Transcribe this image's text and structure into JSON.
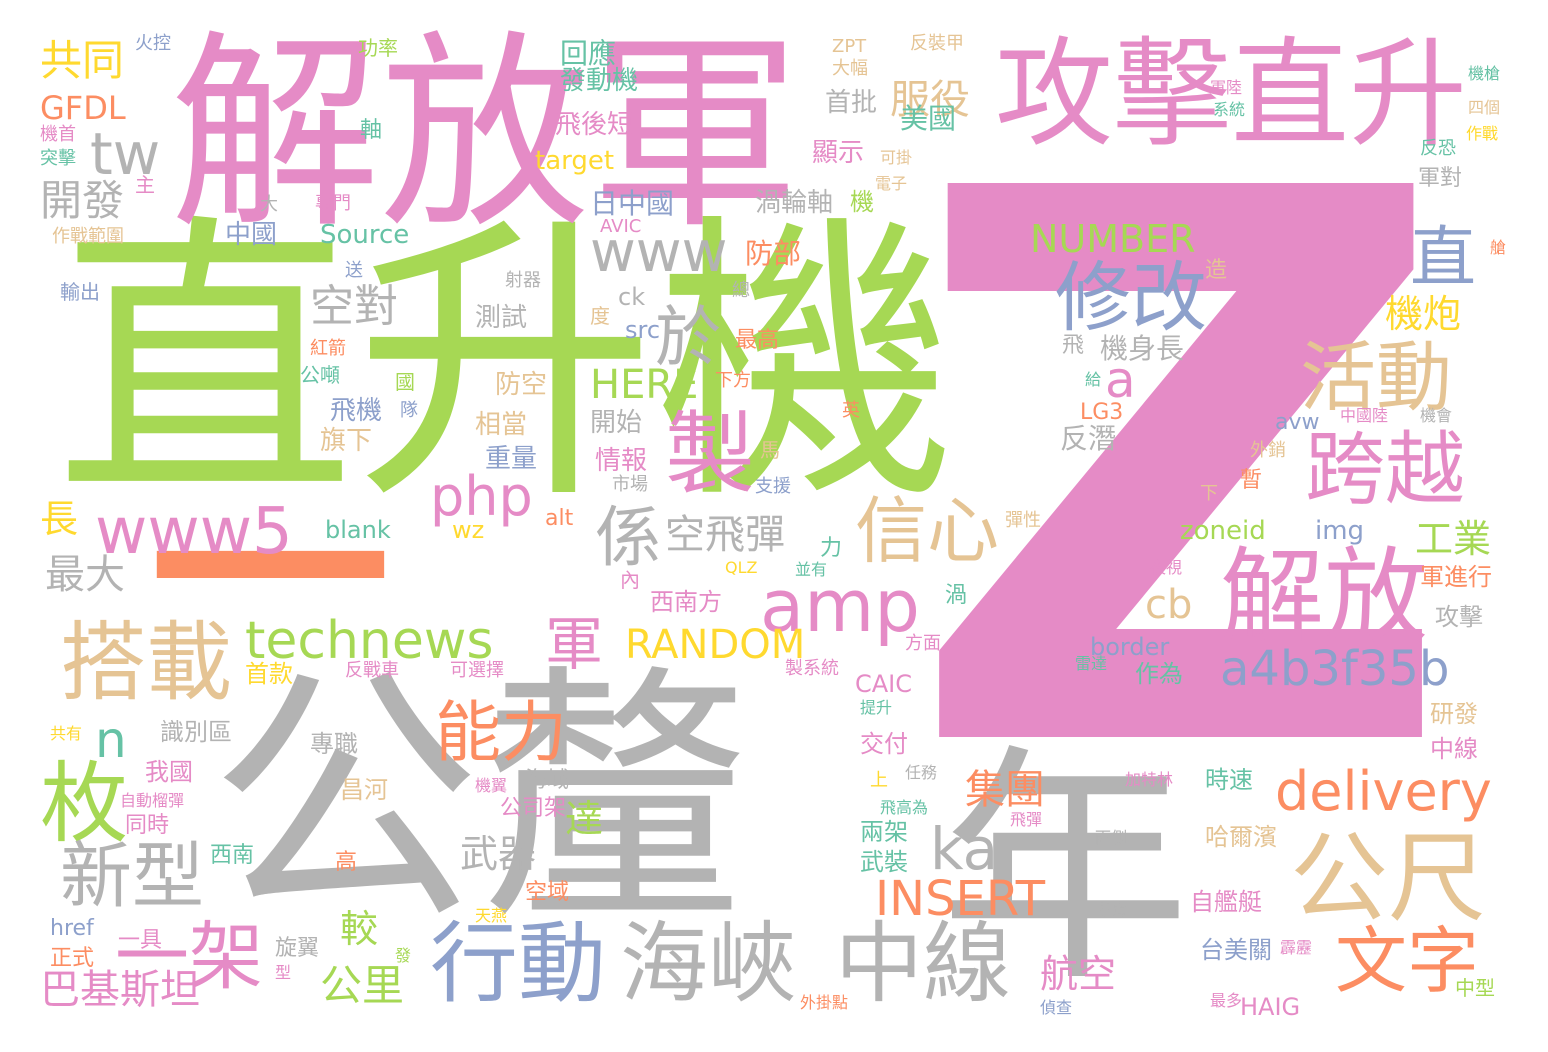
{
  "palette": {
    "pink": "#e58bc6",
    "green": "#a6d854",
    "gray": "#b3b3b3",
    "orange": "#fc8d62",
    "blue": "#8da0cb",
    "tan": "#e5c494",
    "yellow": "#ffd92f",
    "teal": "#66c2a5"
  },
  "words": [
    {
      "text": "Z",
      "color": "pink"
    },
    {
      "text": "直升機",
      "color": "green"
    },
    {
      "text": "解放軍",
      "color": "pink"
    },
    {
      "text": "公釐",
      "color": "gray"
    },
    {
      "text": "一",
      "color": "orange"
    },
    {
      "text": "年",
      "color": "gray"
    },
    {
      "text": "攻擊直升",
      "color": "pink"
    },
    {
      "text": "製",
      "color": "pink"
    },
    {
      "text": "於",
      "color": "gray"
    },
    {
      "text": "修改",
      "color": "blue"
    },
    {
      "text": "活動",
      "color": "tan"
    },
    {
      "text": "跨越",
      "color": "pink"
    },
    {
      "text": "解放",
      "color": "pink"
    },
    {
      "text": "公尺",
      "color": "tan"
    },
    {
      "text": "文字",
      "color": "orange"
    },
    {
      "text": "中線",
      "color": "gray"
    },
    {
      "text": "海峽",
      "color": "gray"
    },
    {
      "text": "行動",
      "color": "blue"
    },
    {
      "text": "搭載",
      "color": "tan"
    },
    {
      "text": "枚",
      "color": "green"
    },
    {
      "text": "新型",
      "color": "gray"
    },
    {
      "text": "一架",
      "color": "pink"
    },
    {
      "text": "www5",
      "color": "pink"
    },
    {
      "text": "www",
      "color": "gray"
    },
    {
      "text": "amp",
      "color": "pink"
    },
    {
      "text": "ka",
      "color": "gray"
    },
    {
      "text": "信心",
      "color": "tan"
    },
    {
      "text": "係",
      "color": "gray"
    },
    {
      "text": "能力",
      "color": "orange"
    },
    {
      "text": "technews",
      "color": "green"
    },
    {
      "text": "軍",
      "color": "pink"
    },
    {
      "text": "delivery",
      "color": "orange"
    },
    {
      "text": "a4b3f35b",
      "color": "blue"
    },
    {
      "text": "php",
      "color": "pink"
    },
    {
      "text": "直",
      "color": "blue"
    },
    {
      "text": "tw",
      "color": "gray"
    },
    {
      "text": "a",
      "color": "pink"
    },
    {
      "text": "n",
      "color": "teal"
    },
    {
      "text": "INSERT",
      "color": "orange"
    },
    {
      "text": "RANDOM",
      "color": "yellow"
    },
    {
      "text": "NUMBER",
      "color": "green"
    },
    {
      "text": "HERE",
      "color": "green"
    },
    {
      "text": "空對",
      "color": "gray"
    },
    {
      "text": "空飛彈",
      "color": "gray"
    },
    {
      "text": "服役",
      "color": "tan"
    },
    {
      "text": "開發",
      "color": "gray"
    },
    {
      "text": "共同",
      "color": "yellow"
    },
    {
      "text": "GFDL",
      "color": "orange"
    },
    {
      "text": "機炮",
      "color": "yellow"
    },
    {
      "text": "工業",
      "color": "green"
    },
    {
      "text": "集團",
      "color": "orange"
    },
    {
      "text": "cb",
      "color": "tan"
    },
    {
      "text": "武器",
      "color": "gray"
    },
    {
      "text": "航空",
      "color": "pink"
    },
    {
      "text": "較",
      "color": "green"
    },
    {
      "text": "公里",
      "color": "green"
    },
    {
      "text": "巴基斯坦",
      "color": "pink"
    },
    {
      "text": "達",
      "color": "green"
    },
    {
      "text": "最大",
      "color": "gray"
    },
    {
      "text": "長",
      "color": "yellow"
    },
    {
      "text": "機身長",
      "color": "gray"
    },
    {
      "text": "反潛",
      "color": "gray"
    },
    {
      "text": "美國",
      "color": "teal"
    },
    {
      "text": "首批",
      "color": "gray"
    },
    {
      "text": "顯示",
      "color": "pink"
    },
    {
      "text": "回應",
      "color": "teal"
    },
    {
      "text": "發動機",
      "color": "teal"
    },
    {
      "text": "飛後短",
      "color": "pink"
    },
    {
      "text": "target",
      "color": "yellow"
    },
    {
      "text": "日中國",
      "color": "blue"
    },
    {
      "text": "渦輪軸",
      "color": "gray"
    },
    {
      "text": "防部",
      "color": "orange"
    },
    {
      "text": "Source",
      "color": "teal"
    },
    {
      "text": "中國",
      "color": "blue"
    },
    {
      "text": "測試",
      "color": "gray"
    },
    {
      "text": "src",
      "color": "blue"
    },
    {
      "text": "ck",
      "color": "gray"
    },
    {
      "text": "最高",
      "color": "orange"
    },
    {
      "text": "防空",
      "color": "tan"
    },
    {
      "text": "開始",
      "color": "gray"
    },
    {
      "text": "相當",
      "color": "tan"
    },
    {
      "text": "重量",
      "color": "blue"
    },
    {
      "text": "情報",
      "color": "pink"
    },
    {
      "text": "飛機",
      "color": "blue"
    },
    {
      "text": "旗下",
      "color": "tan"
    },
    {
      "text": "blank",
      "color": "teal"
    },
    {
      "text": "wz",
      "color": "yellow"
    },
    {
      "text": "alt",
      "color": "orange"
    },
    {
      "text": "zoneid",
      "color": "green"
    },
    {
      "text": "img",
      "color": "blue"
    },
    {
      "text": "avw",
      "color": "blue"
    },
    {
      "text": "LG3",
      "color": "orange"
    },
    {
      "text": "西南方",
      "color": "pink"
    },
    {
      "text": "border",
      "color": "blue"
    },
    {
      "text": "CAIC",
      "color": "pink"
    },
    {
      "text": "作為",
      "color": "teal"
    },
    {
      "text": "軍進行",
      "color": "orange"
    },
    {
      "text": "攻擊",
      "color": "gray"
    },
    {
      "text": "研發",
      "color": "tan"
    },
    {
      "text": "中線",
      "color": "pink"
    },
    {
      "text": "時速",
      "color": "teal"
    },
    {
      "text": "哈爾濱",
      "color": "tan"
    },
    {
      "text": "自艦艇",
      "color": "pink"
    },
    {
      "text": "台美關",
      "color": "blue"
    },
    {
      "text": "HAIG",
      "color": "pink"
    },
    {
      "text": "交付",
      "color": "pink"
    },
    {
      "text": "兩架",
      "color": "teal"
    },
    {
      "text": "武裝",
      "color": "teal"
    },
    {
      "text": "首款",
      "color": "yellow"
    },
    {
      "text": "識別區",
      "color": "gray"
    },
    {
      "text": "專職",
      "color": "gray"
    },
    {
      "text": "我國",
      "color": "pink"
    },
    {
      "text": "同時",
      "color": "pink"
    },
    {
      "text": "西南",
      "color": "teal"
    },
    {
      "text": "昌河",
      "color": "tan"
    },
    {
      "text": "海域",
      "color": "gray"
    },
    {
      "text": "公司架",
      "color": "pink"
    },
    {
      "text": "空域",
      "color": "orange"
    },
    {
      "text": "高",
      "color": "orange"
    },
    {
      "text": "旋翼",
      "color": "gray"
    },
    {
      "text": "正式",
      "color": "orange"
    },
    {
      "text": "href",
      "color": "blue"
    },
    {
      "text": "一具",
      "color": "pink"
    },
    {
      "text": "輸出",
      "color": "blue"
    },
    {
      "text": "作戰範圍",
      "color": "tan"
    },
    {
      "text": "公噸",
      "color": "teal"
    },
    {
      "text": "國",
      "color": "green"
    },
    {
      "text": "隊",
      "color": "blue"
    },
    {
      "text": "紅箭",
      "color": "orange"
    },
    {
      "text": "射器",
      "color": "gray"
    },
    {
      "text": "送",
      "color": "blue"
    },
    {
      "text": "專門",
      "color": "pink"
    },
    {
      "text": "大",
      "color": "gray"
    },
    {
      "text": "主",
      "color": "pink"
    },
    {
      "text": "突擊",
      "color": "teal"
    },
    {
      "text": "機首",
      "color": "pink"
    },
    {
      "text": "火控",
      "color": "blue"
    },
    {
      "text": "功率",
      "color": "green"
    },
    {
      "text": "軸",
      "color": "teal"
    },
    {
      "text": "ZPT",
      "color": "tan"
    },
    {
      "text": "大幅",
      "color": "tan"
    },
    {
      "text": "反裝甲",
      "color": "tan"
    },
    {
      "text": "軍陸",
      "color": "pink"
    },
    {
      "text": "系統",
      "color": "teal"
    },
    {
      "text": "機槍",
      "color": "teal"
    },
    {
      "text": "四個",
      "color": "tan"
    },
    {
      "text": "作戰",
      "color": "yellow"
    },
    {
      "text": "反恐",
      "color": "teal"
    },
    {
      "text": "軍對",
      "color": "gray"
    },
    {
      "text": "造",
      "color": "tan"
    },
    {
      "text": "艙",
      "color": "orange"
    },
    {
      "text": "可掛",
      "color": "tan"
    },
    {
      "text": "電子",
      "color": "tan"
    },
    {
      "text": "機",
      "color": "green"
    },
    {
      "text": "飛",
      "color": "gray"
    },
    {
      "text": "總",
      "color": "gray"
    },
    {
      "text": "度",
      "color": "tan"
    },
    {
      "text": "下方",
      "color": "orange"
    },
    {
      "text": "馬",
      "color": "tan"
    },
    {
      "text": "支援",
      "color": "blue"
    },
    {
      "text": "市場",
      "color": "gray"
    },
    {
      "text": "暫",
      "color": "orange"
    },
    {
      "text": "下",
      "color": "tan"
    },
    {
      "text": "外銷",
      "color": "tan"
    },
    {
      "text": "彈性",
      "color": "tan"
    },
    {
      "text": "夜視",
      "color": "pink"
    },
    {
      "text": "渦",
      "color": "teal"
    },
    {
      "text": "方面",
      "color": "pink"
    },
    {
      "text": "力",
      "color": "teal"
    },
    {
      "text": "並有",
      "color": "teal"
    },
    {
      "text": "QLZ",
      "color": "yellow"
    },
    {
      "text": "內",
      "color": "pink"
    },
    {
      "text": "英",
      "color": "orange"
    },
    {
      "text": "給",
      "color": "teal"
    },
    {
      "text": "機會",
      "color": "gray"
    },
    {
      "text": "中國陸",
      "color": "pink"
    },
    {
      "text": "AVIC",
      "color": "pink"
    },
    {
      "text": "雷達",
      "color": "teal"
    },
    {
      "text": "製系統",
      "color": "pink"
    },
    {
      "text": "反戰車",
      "color": "pink"
    },
    {
      "text": "可選擇",
      "color": "pink"
    },
    {
      "text": "提升",
      "color": "teal"
    },
    {
      "text": "共有",
      "color": "yellow"
    },
    {
      "text": "自動榴彈",
      "color": "pink"
    },
    {
      "text": "上",
      "color": "yellow"
    },
    {
      "text": "任務",
      "color": "gray"
    },
    {
      "text": "機翼",
      "color": "pink"
    },
    {
      "text": "加特林",
      "color": "pink"
    },
    {
      "text": "飛高為",
      "color": "teal"
    },
    {
      "text": "飛彈",
      "color": "pink"
    },
    {
      "text": "雨側",
      "color": "gray"
    },
    {
      "text": "考慮",
      "color": "gray"
    },
    {
      "text": "天燕",
      "color": "yellow"
    },
    {
      "text": "發",
      "color": "green"
    },
    {
      "text": "型",
      "color": "pink"
    },
    {
      "text": "外掛點",
      "color": "orange"
    },
    {
      "text": "偵查",
      "color": "blue"
    },
    {
      "text": "最多",
      "color": "pink"
    },
    {
      "text": "霹靂",
      "color": "pink"
    },
    {
      "text": "中型",
      "color": "green"
    }
  ]
}
